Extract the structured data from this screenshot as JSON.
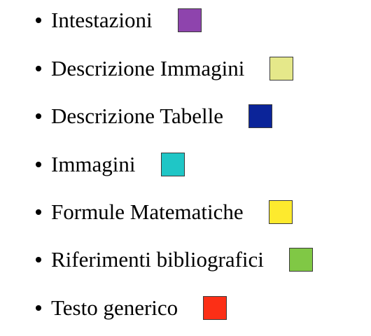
{
  "legend": {
    "items": [
      {
        "label": "Intestazioni",
        "color": "#8e44ad"
      },
      {
        "label": "Descrizione Immagini",
        "color": "#e5e88a"
      },
      {
        "label": "Descrizione Tabelle",
        "color": "#0b2499"
      },
      {
        "label": "Immagini",
        "color": "#1fc6c6"
      },
      {
        "label": "Formule Matematiche",
        "color": "#fdea2e"
      },
      {
        "label": "Riferimenti bibliografici",
        "color": "#80c845"
      },
      {
        "label": "Testo generico",
        "color": "#fc2f16"
      }
    ]
  }
}
